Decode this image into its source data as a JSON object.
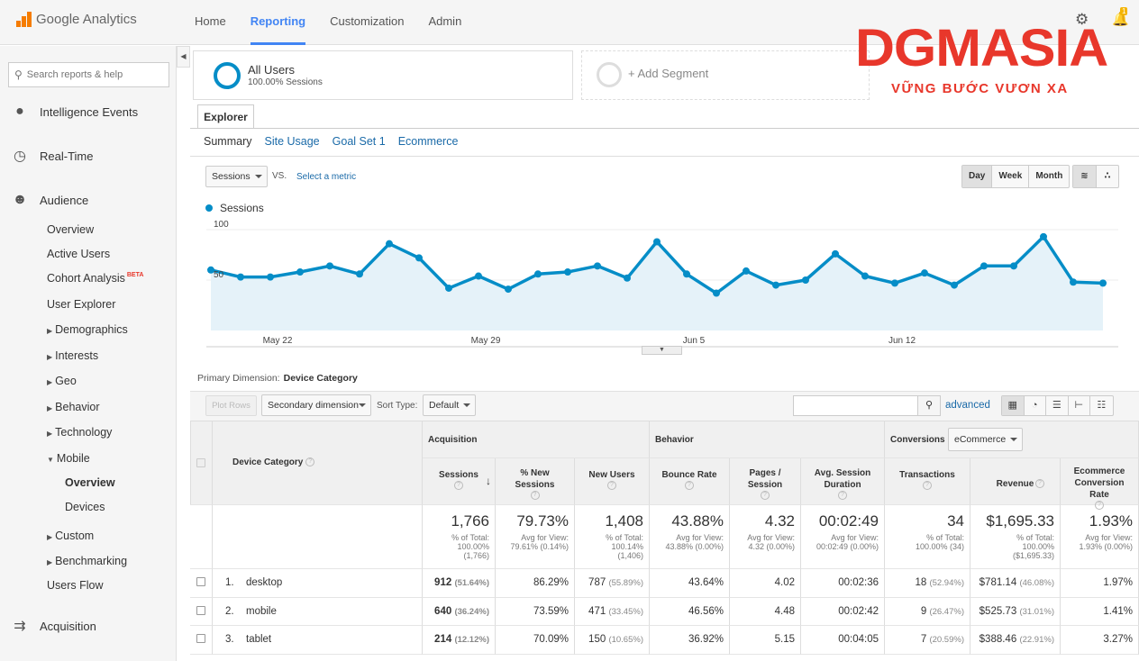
{
  "app": {
    "name": "Google Analytics"
  },
  "topnav": [
    "Home",
    "Reporting",
    "Customization",
    "Admin"
  ],
  "notification_count": "1",
  "watermark": {
    "brand": "DGMASIA",
    "tagline": "VỮNG BƯỚC VƯƠN XA"
  },
  "sidebar": {
    "search_placeholder": "Search reports & help",
    "intelligence": "Intelligence Events",
    "realtime": "Real-Time",
    "audience": "Audience",
    "overview": "Overview",
    "active_users": "Active Users",
    "cohort": "Cohort Analysis",
    "beta": "BETA",
    "user_explorer": "User Explorer",
    "demographics": "Demographics",
    "interests": "Interests",
    "geo": "Geo",
    "behavior": "Behavior",
    "technology": "Technology",
    "mobile": "Mobile",
    "mobile_overview": "Overview",
    "devices": "Devices",
    "custom": "Custom",
    "benchmarking": "Benchmarking",
    "users_flow": "Users Flow",
    "acquisition": "Acquisition"
  },
  "segments": {
    "all_users": "All Users",
    "all_users_sub": "100.00% Sessions",
    "add_segment": "+ Add Segment"
  },
  "explorer_tab": "Explorer",
  "subtabs": [
    "Summary",
    "Site Usage",
    "Goal Set 1",
    "Ecommerce"
  ],
  "chart_controls": {
    "metric": "Sessions",
    "vs": "VS.",
    "select_metric": "Select a metric",
    "periods": [
      "Day",
      "Week",
      "Month"
    ],
    "active_period": "Day"
  },
  "chart_data": {
    "type": "area",
    "legend": "Sessions",
    "color": "#058dc7",
    "ylim": [
      0,
      100
    ],
    "yticks": [
      100,
      50
    ],
    "xtick_labels": [
      "May 22",
      "May 29",
      "Jun 5",
      "Jun 12"
    ],
    "xtick_indices": [
      2,
      9,
      16,
      23
    ],
    "values": [
      60,
      53,
      53,
      58,
      64,
      56,
      86,
      72,
      42,
      54,
      41,
      56,
      58,
      64,
      52,
      88,
      56,
      37,
      59,
      45,
      50,
      76,
      54,
      47,
      57,
      45,
      64,
      64,
      93,
      48,
      47
    ]
  },
  "primary_dimension": {
    "label": "Primary Dimension:",
    "value": "Device Category"
  },
  "toolbar": {
    "plot_rows": "Plot Rows",
    "secondary_dimension": "Secondary dimension",
    "sort_type_label": "Sort Type:",
    "sort_type": "Default",
    "advanced": "advanced"
  },
  "table": {
    "dimension_header": "Device Category",
    "groups": {
      "acquisition": "Acquisition",
      "behavior": "Behavior",
      "conversions": "Conversions",
      "conversions_select": "eCommerce"
    },
    "columns": [
      [
        "Sessions"
      ],
      [
        "% New",
        "Sessions"
      ],
      [
        "New Users"
      ],
      [
        "Bounce Rate"
      ],
      [
        "Pages /",
        "Session"
      ],
      [
        "Avg. Session",
        "Duration"
      ],
      [
        "Transactions"
      ],
      [
        "Revenue"
      ],
      [
        "Ecommerce",
        "Conversion",
        "Rate"
      ]
    ],
    "totals": [
      {
        "big": "1,766",
        "small": [
          "% of Total:",
          "100.00%",
          "(1,766)"
        ]
      },
      {
        "big": "79.73%",
        "small": [
          "Avg for View:",
          "79.61% (0.14%)"
        ]
      },
      {
        "big": "1,408",
        "small": [
          "% of Total:",
          "100.14%",
          "(1,406)"
        ]
      },
      {
        "big": "43.88%",
        "small": [
          "Avg for View:",
          "43.88% (0.00%)"
        ]
      },
      {
        "big": "4.32",
        "small": [
          "Avg for View:",
          "4.32 (0.00%)"
        ]
      },
      {
        "big": "00:02:49",
        "small": [
          "Avg for View:",
          "00:02:49 (0.00%)"
        ]
      },
      {
        "big": "34",
        "small": [
          "% of Total:",
          "100.00% (34)"
        ]
      },
      {
        "big": "$1,695.33",
        "small": [
          "% of Total:",
          "100.00%",
          "($1,695.33)"
        ]
      },
      {
        "big": "1.93%",
        "small": [
          "Avg for View:",
          "1.93% (0.00%)"
        ]
      }
    ],
    "rows": [
      {
        "index": "1.",
        "name": "desktop",
        "cells": [
          [
            "912",
            "(51.64%)"
          ],
          [
            "86.29%",
            ""
          ],
          [
            "787",
            "(55.89%)"
          ],
          [
            "43.64%",
            ""
          ],
          [
            "4.02",
            ""
          ],
          [
            "00:02:36",
            ""
          ],
          [
            "18",
            "(52.94%)"
          ],
          [
            "$781.14",
            "(46.08%)"
          ],
          [
            "1.97%",
            ""
          ]
        ]
      },
      {
        "index": "2.",
        "name": "mobile",
        "cells": [
          [
            "640",
            "(36.24%)"
          ],
          [
            "73.59%",
            ""
          ],
          [
            "471",
            "(33.45%)"
          ],
          [
            "46.56%",
            ""
          ],
          [
            "4.48",
            ""
          ],
          [
            "00:02:42",
            ""
          ],
          [
            "9",
            "(26.47%)"
          ],
          [
            "$525.73",
            "(31.01%)"
          ],
          [
            "1.41%",
            ""
          ]
        ]
      },
      {
        "index": "3.",
        "name": "tablet",
        "cells": [
          [
            "214",
            "(12.12%)"
          ],
          [
            "70.09%",
            ""
          ],
          [
            "150",
            "(10.65%)"
          ],
          [
            "36.92%",
            ""
          ],
          [
            "5.15",
            ""
          ],
          [
            "00:04:05",
            ""
          ],
          [
            "7",
            "(20.59%)"
          ],
          [
            "$388.46",
            "(22.91%)"
          ],
          [
            "3.27%",
            ""
          ]
        ]
      }
    ]
  }
}
